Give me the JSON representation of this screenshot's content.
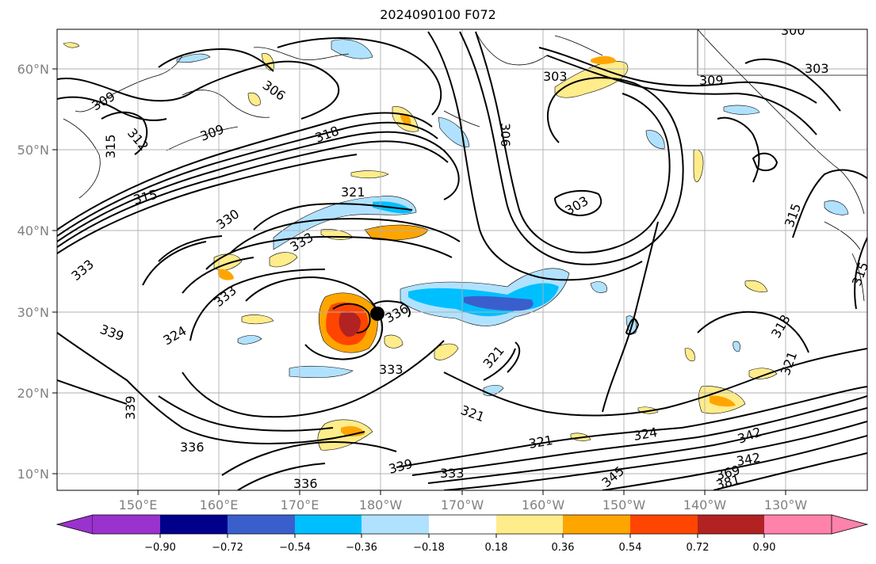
{
  "title": "2024090100 F072",
  "lat_labels": [
    "60°N",
    "50°N",
    "40°N",
    "30°N",
    "20°N",
    "10°N"
  ],
  "lon_labels": [
    "150°E",
    "160°E",
    "170°E",
    "180°W",
    "170°W",
    "160°W",
    "150°W",
    "140°W",
    "130°W"
  ],
  "contour_labels": [
    "300",
    "303",
    "303",
    "303",
    "306",
    "306",
    "309",
    "309",
    "309",
    "312",
    "315",
    "315",
    "315",
    "318",
    "318",
    "321",
    "321",
    "321",
    "321",
    "321",
    "324",
    "324",
    "330",
    "333",
    "333",
    "333",
    "333",
    "333",
    "336",
    "336",
    "336",
    "339",
    "339",
    "339",
    "342",
    "342",
    "345",
    "369",
    "381",
    "315"
  ],
  "colorbar": {
    "ticks": [
      "−0.90",
      "−0.72",
      "−0.54",
      "−0.36",
      "−0.18",
      "0.18",
      "0.36",
      "0.54",
      "0.72",
      "0.90"
    ],
    "colors": [
      "#9a32cd",
      "#00008b",
      "#3a5fcd",
      "#00bfff",
      "#b0e2ff",
      "#ffffff",
      "#ffec8b",
      "#ffa500",
      "#ff4500",
      "#b22222",
      "#ff82ab"
    ]
  }
}
